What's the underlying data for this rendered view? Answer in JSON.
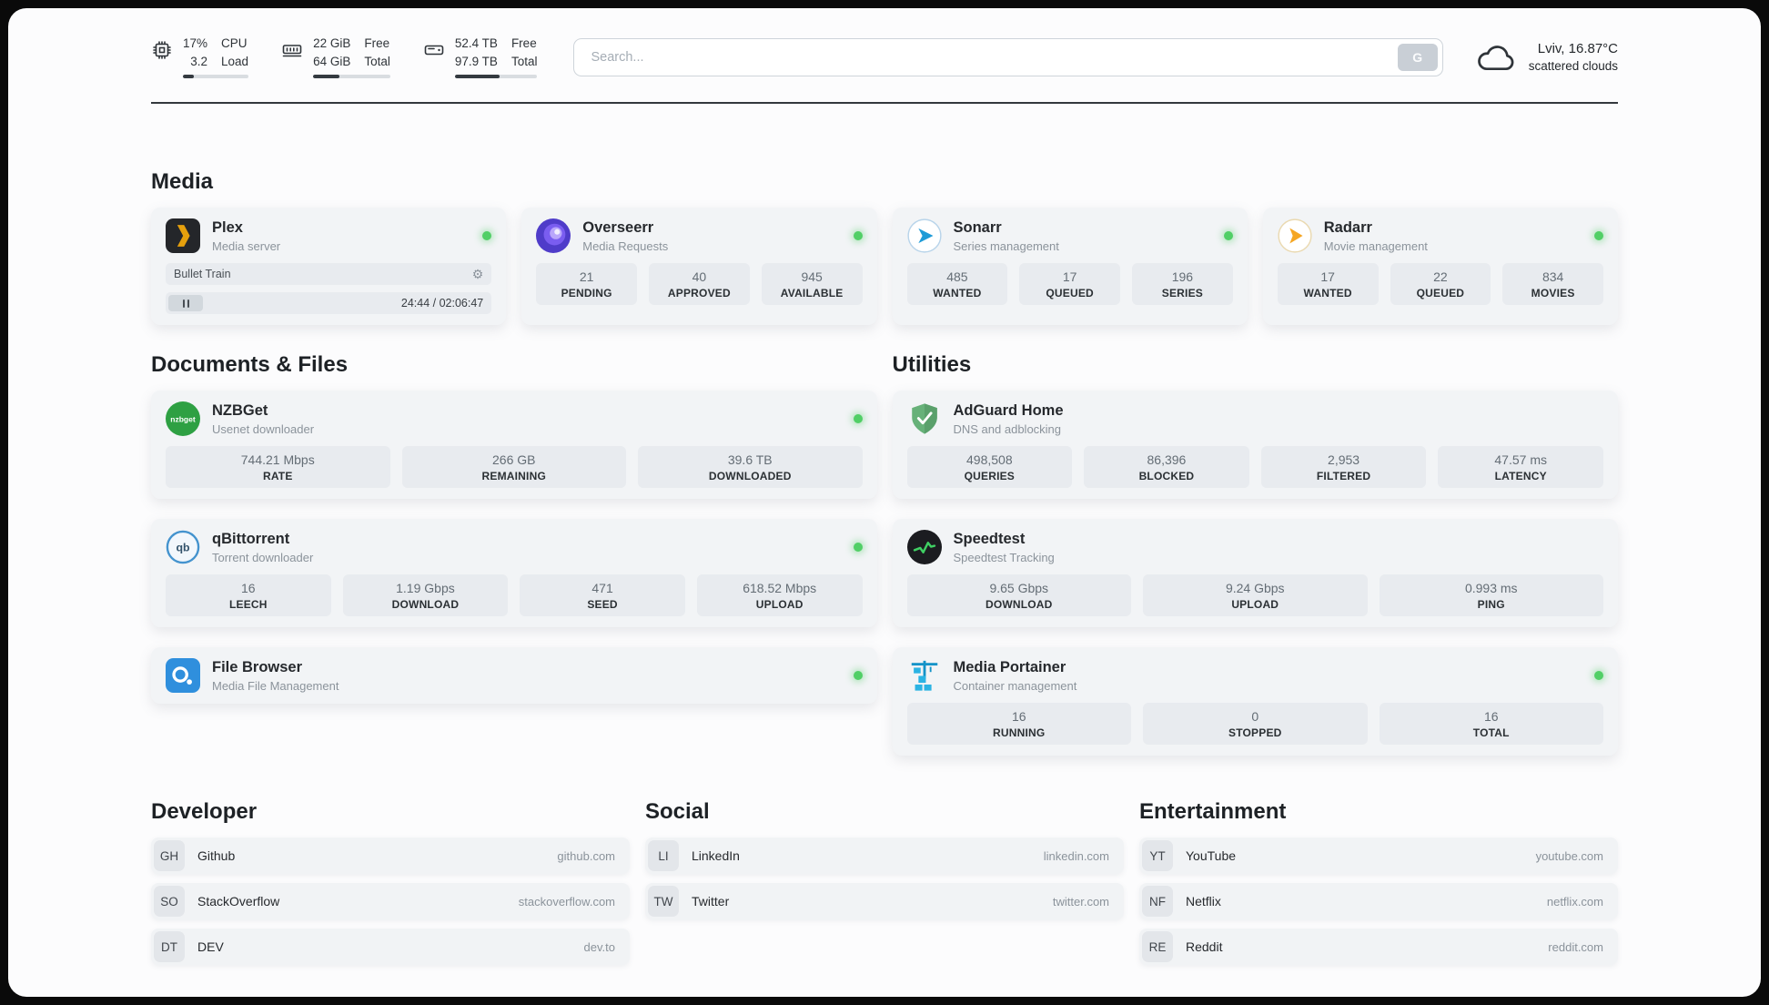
{
  "header": {
    "cpu": {
      "value_top": "17%",
      "value_bottom": "3.2",
      "label_top": "CPU",
      "label_bottom": "Load",
      "bar_width": "17%"
    },
    "ram": {
      "value_top": "22 GiB",
      "value_bottom": "64 GiB",
      "label_top": "Free",
      "label_bottom": "Total",
      "bar_width": "34%"
    },
    "disk": {
      "value_top": "52.4 TB",
      "value_bottom": "97.9 TB",
      "label_top": "Free",
      "label_bottom": "Total",
      "bar_width": "54%"
    },
    "search": {
      "placeholder": "Search...",
      "engine_button": "G"
    },
    "weather": {
      "location": "Lviv, 16.87°C",
      "condition": "scattered clouds"
    }
  },
  "icons": {
    "gear": "⚙",
    "nzbget_logo_text": "nzbget",
    "qbittorrent_logo_text": "qb"
  },
  "colors": {
    "status_online": "#51cf66",
    "plex_accent": "#e5a00d"
  },
  "sections": {
    "media": {
      "title": "Media",
      "apps": [
        {
          "name": "Plex",
          "subtitle": "Media server",
          "online": true,
          "player": {
            "track": "Bullet Train",
            "time": "24:44 / 02:06:47"
          }
        },
        {
          "name": "Overseerr",
          "subtitle": "Media Requests",
          "online": true,
          "stats": [
            {
              "value": "21",
              "label": "PENDING"
            },
            {
              "value": "40",
              "label": "APPROVED"
            },
            {
              "value": "945",
              "label": "AVAILABLE"
            }
          ]
        },
        {
          "name": "Sonarr",
          "subtitle": "Series management",
          "online": true,
          "stats": [
            {
              "value": "485",
              "label": "WANTED"
            },
            {
              "value": "17",
              "label": "QUEUED"
            },
            {
              "value": "196",
              "label": "SERIES"
            }
          ]
        },
        {
          "name": "Radarr",
          "subtitle": "Movie management",
          "online": true,
          "stats": [
            {
              "value": "17",
              "label": "WANTED"
            },
            {
              "value": "22",
              "label": "QUEUED"
            },
            {
              "value": "834",
              "label": "MOVIES"
            }
          ]
        }
      ]
    },
    "documents": {
      "title": "Documents & Files",
      "apps": [
        {
          "name": "NZBGet",
          "subtitle": "Usenet downloader",
          "online": true,
          "stats": [
            {
              "value": "744.21 Mbps",
              "label": "RATE"
            },
            {
              "value": "266 GB",
              "label": "REMAINING"
            },
            {
              "value": "39.6 TB",
              "label": "DOWNLOADED"
            }
          ]
        },
        {
          "name": "qBittorrent",
          "subtitle": "Torrent downloader",
          "online": true,
          "stats": [
            {
              "value": "16",
              "label": "LEECH"
            },
            {
              "value": "1.19 Gbps",
              "label": "DOWNLOAD"
            },
            {
              "value": "471",
              "label": "SEED"
            },
            {
              "value": "618.52 Mbps",
              "label": "UPLOAD"
            }
          ]
        },
        {
          "name": "File Browser",
          "subtitle": "Media File Management",
          "online": true
        }
      ]
    },
    "utilities": {
      "title": "Utilities",
      "apps": [
        {
          "name": "AdGuard Home",
          "subtitle": "DNS and adblocking",
          "stats": [
            {
              "value": "498,508",
              "label": "QUERIES"
            },
            {
              "value": "86,396",
              "label": "BLOCKED"
            },
            {
              "value": "2,953",
              "label": "FILTERED"
            },
            {
              "value": "47.57 ms",
              "label": "LATENCY"
            }
          ]
        },
        {
          "name": "Speedtest",
          "subtitle": "Speedtest Tracking",
          "stats": [
            {
              "value": "9.65 Gbps",
              "label": "DOWNLOAD"
            },
            {
              "value": "9.24 Gbps",
              "label": "UPLOAD"
            },
            {
              "value": "0.993 ms",
              "label": "PING"
            }
          ]
        },
        {
          "name": "Media Portainer",
          "subtitle": "Container management",
          "online": true,
          "stats": [
            {
              "value": "16",
              "label": "RUNNING"
            },
            {
              "value": "0",
              "label": "STOPPED"
            },
            {
              "value": "16",
              "label": "TOTAL"
            }
          ]
        }
      ]
    },
    "bookmarks": [
      {
        "title": "Developer",
        "links": [
          {
            "abbr": "GH",
            "name": "Github",
            "url": "github.com"
          },
          {
            "abbr": "SO",
            "name": "StackOverflow",
            "url": "stackoverflow.com"
          },
          {
            "abbr": "DT",
            "name": "DEV",
            "url": "dev.to"
          }
        ]
      },
      {
        "title": "Social",
        "links": [
          {
            "abbr": "LI",
            "name": "LinkedIn",
            "url": "linkedin.com"
          },
          {
            "abbr": "TW",
            "name": "Twitter",
            "url": "twitter.com"
          }
        ]
      },
      {
        "title": "Entertainment",
        "links": [
          {
            "abbr": "YT",
            "name": "YouTube",
            "url": "youtube.com"
          },
          {
            "abbr": "NF",
            "name": "Netflix",
            "url": "netflix.com"
          },
          {
            "abbr": "RE",
            "name": "Reddit",
            "url": "reddit.com"
          }
        ]
      }
    ]
  }
}
